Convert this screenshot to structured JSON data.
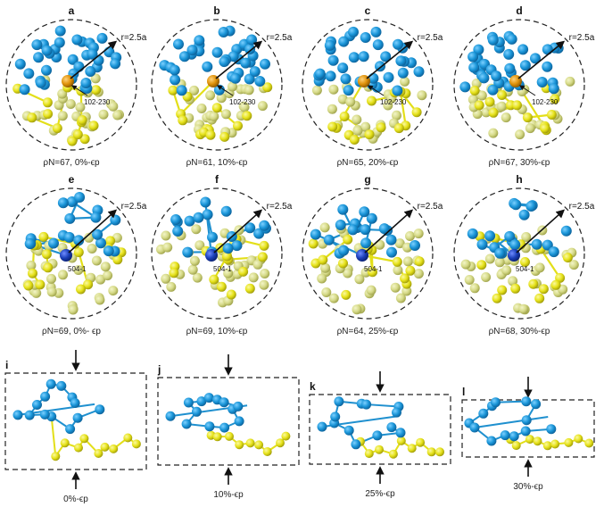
{
  "colors": {
    "blue": "#1a95d8",
    "blue_dark": "#0f6fae",
    "blue_center": "#1b3fb8",
    "yellow": "#e6e21a",
    "yellow_dark": "#b8b410",
    "pale": "#d8dc8a",
    "pale_dark": "#a9ad58",
    "orange": "#e0920a",
    "bond_blue": "#1f90cf",
    "bond_yellow": "#e3df19"
  },
  "circle_panels": [
    {
      "letter": "a",
      "radius_label": "r=2.5a",
      "atom_label": "102-230",
      "caption": "ρN=67, 0%-ϵp",
      "center_type": "orange",
      "seed": 11
    },
    {
      "letter": "b",
      "radius_label": "r=2.5a",
      "atom_label": "102-230",
      "caption": "ρN=61, 10%-ϵp",
      "center_type": "orange",
      "seed": 23
    },
    {
      "letter": "c",
      "radius_label": "r=2.5a",
      "atom_label": "102-230",
      "caption": "ρN=65, 20%-ϵp",
      "center_type": "orange",
      "seed": 37
    },
    {
      "letter": "d",
      "radius_label": "r=2.5a",
      "atom_label": "102-230",
      "caption": "ρN=67, 30%-ϵp",
      "center_type": "orange",
      "seed": 41
    },
    {
      "letter": "e",
      "radius_label": "r=2.5a",
      "atom_label": "504-1",
      "caption": "ρN=69, 0%-  ϵp",
      "center_type": "blue",
      "seed": 53
    },
    {
      "letter": "f",
      "radius_label": "r=2.5a",
      "atom_label": "504-1",
      "caption": "ρN=69, 10%-ϵp",
      "center_type": "blue",
      "seed": 67
    },
    {
      "letter": "g",
      "radius_label": "r=2.5a",
      "atom_label": "504-1",
      "caption": "ρN=64, 25%-ϵp",
      "center_type": "blue",
      "seed": 71
    },
    {
      "letter": "h",
      "radius_label": "r=2.5a",
      "atom_label": "504-1",
      "caption": "ρN=68, 30%-ϵp",
      "center_type": "blue",
      "seed": 83
    }
  ],
  "box_panels": [
    {
      "letter": "i",
      "caption": "0%-ϵp"
    },
    {
      "letter": "j",
      "caption": "10%-ϵp"
    },
    {
      "letter": "k",
      "caption": "25%-ϵp"
    },
    {
      "letter": "l",
      "caption": "30%-ϵp"
    }
  ]
}
